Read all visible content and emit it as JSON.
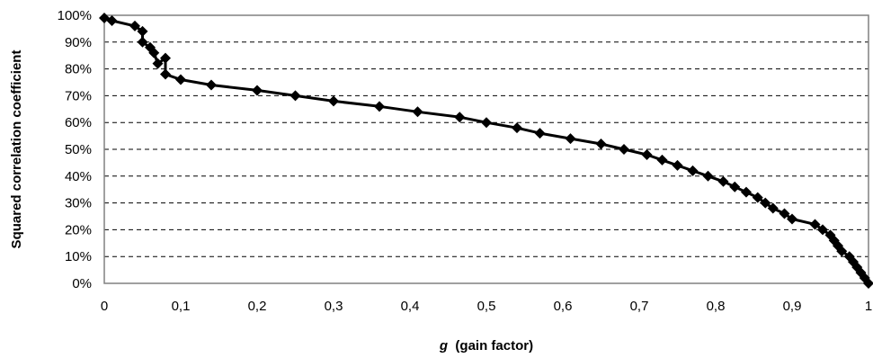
{
  "chart_data": {
    "type": "line",
    "title": "",
    "xlabel_var": "g",
    "xlabel_rest": "  (gain factor)",
    "ylabel": "Squared correlation coefficient",
    "xlim": [
      0,
      1
    ],
    "ylim": [
      0,
      100
    ],
    "x_tick_labels": [
      "0",
      "0,1",
      "0,2",
      "0,3",
      "0,4",
      "0,5",
      "0,6",
      "0,7",
      "0,8",
      "0,9",
      "1"
    ],
    "y_tick_labels": [
      "0%",
      "10%",
      "20%",
      "30%",
      "40%",
      "50%",
      "60%",
      "70%",
      "80%",
      "90%",
      "100%"
    ],
    "grid": "horizontal dashed",
    "legend": "none",
    "colors": {
      "line": "#000000",
      "marker": "#000000",
      "grid": "#000000",
      "border": "#808080"
    },
    "series": [
      {
        "marker": "diamond",
        "points": [
          [
            0,
            99
          ],
          [
            0.01,
            98
          ],
          [
            0.04,
            96
          ],
          [
            0.05,
            94
          ],
          [
            0.05,
            90
          ],
          [
            0.06,
            88
          ],
          [
            0.065,
            86
          ],
          [
            0.07,
            82
          ],
          [
            0.08,
            84
          ],
          [
            0.08,
            78
          ],
          [
            0.1,
            76
          ],
          [
            0.14,
            74
          ],
          [
            0.2,
            72
          ],
          [
            0.25,
            70
          ],
          [
            0.3,
            68
          ],
          [
            0.36,
            66
          ],
          [
            0.41,
            64
          ],
          [
            0.465,
            62
          ],
          [
            0.5,
            60
          ],
          [
            0.54,
            58
          ],
          [
            0.57,
            56
          ],
          [
            0.61,
            54
          ],
          [
            0.65,
            52
          ],
          [
            0.68,
            50
          ],
          [
            0.71,
            48
          ],
          [
            0.73,
            46
          ],
          [
            0.75,
            44
          ],
          [
            0.77,
            42
          ],
          [
            0.79,
            40
          ],
          [
            0.81,
            38
          ],
          [
            0.825,
            36
          ],
          [
            0.84,
            34
          ],
          [
            0.855,
            32
          ],
          [
            0.865,
            30
          ],
          [
            0.875,
            28
          ],
          [
            0.89,
            26
          ],
          [
            0.9,
            24
          ],
          [
            0.93,
            22
          ],
          [
            0.94,
            20
          ],
          [
            0.95,
            18
          ],
          [
            0.955,
            16
          ],
          [
            0.96,
            14
          ],
          [
            0.965,
            12
          ],
          [
            0.975,
            10
          ],
          [
            0.98,
            8
          ],
          [
            0.985,
            6
          ],
          [
            0.99,
            4
          ],
          [
            0.995,
            2
          ],
          [
            1,
            0
          ]
        ]
      }
    ]
  }
}
